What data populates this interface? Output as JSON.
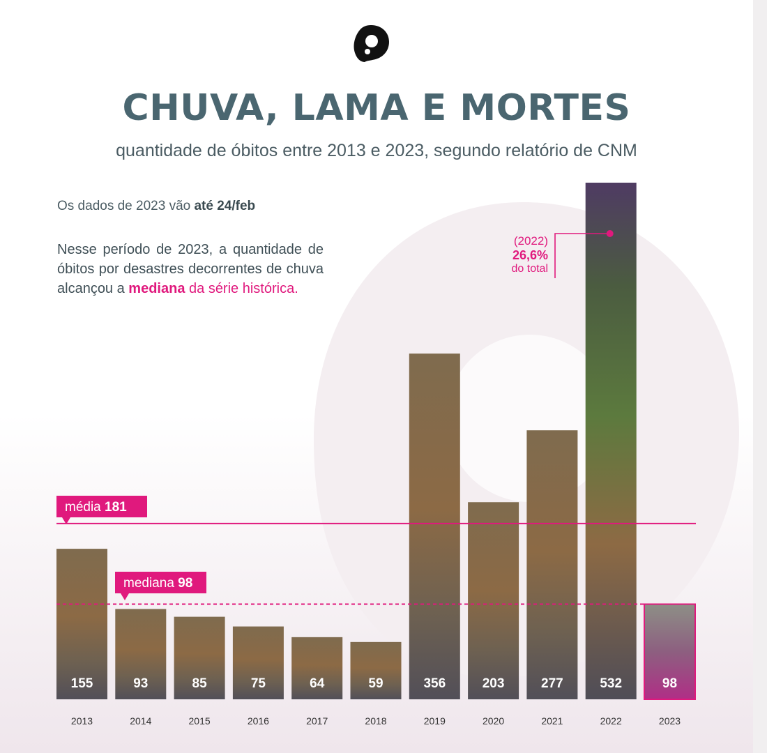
{
  "header": {
    "title": "CHUVA, LAMA E MORTES",
    "subtitle": "quantidade de óbitos entre 2013 e 2023, segundo relatório de CNM"
  },
  "notes": {
    "note1_prefix": "Os dados de 2023 vão ",
    "note1_bold": "até 24/feb",
    "note2_prefix": "Nesse período de 2023, a quantidade de óbitos por desastres decorrentes de chuva alcançou a ",
    "note2_bold": "mediana",
    "note2_suffix": " da série histórica."
  },
  "annotation": {
    "year": "(2022)",
    "percent": "26,6%",
    "label": "do total"
  },
  "icons": {
    "logo": "brand-logo-icon"
  },
  "colors": {
    "accent": "#e0197d",
    "title": "#4a6670",
    "bar_label": "#ffffff",
    "year_label": "#333333"
  },
  "chart_data": {
    "type": "bar",
    "categories": [
      "2013",
      "2014",
      "2015",
      "2016",
      "2017",
      "2018",
      "2019",
      "2020",
      "2021",
      "2022",
      "2023"
    ],
    "values": [
      155,
      93,
      85,
      75,
      64,
      59,
      356,
      203,
      277,
      532,
      98
    ],
    "value_labels": [
      "155",
      "93",
      "85",
      "75",
      "64",
      "59",
      "356",
      "203",
      "277",
      "532",
      "98"
    ],
    "highlight_category": "2023",
    "reference_lines": [
      {
        "name_prefix": "média ",
        "value_label": "181",
        "value": 181,
        "style": "solid"
      },
      {
        "name_prefix": "mediana ",
        "value_label": "98",
        "value": 98,
        "style": "dashed"
      }
    ],
    "ylim": [
      0,
      532
    ],
    "grid": false
  }
}
